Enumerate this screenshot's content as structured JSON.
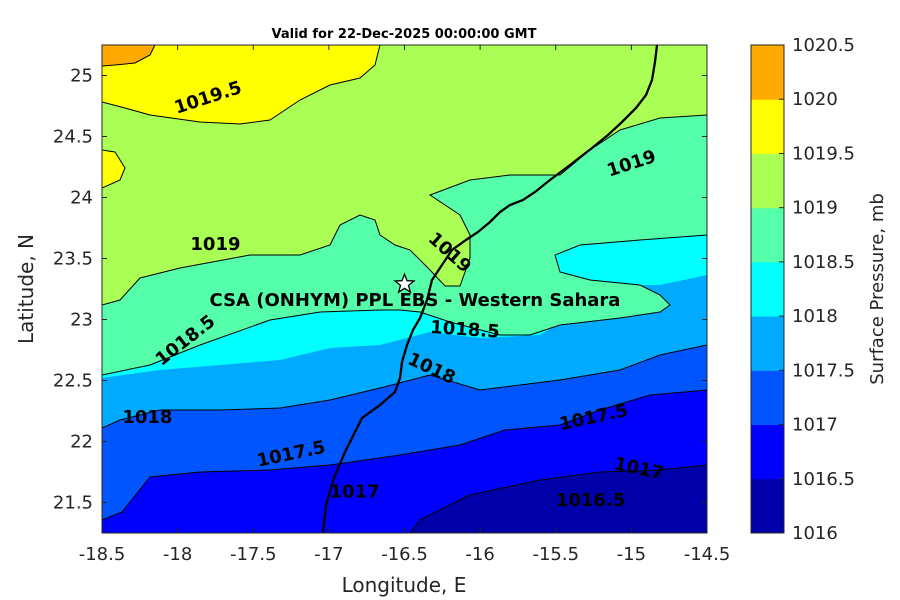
{
  "title": "Valid for 22-Dec-2025 00:00:00 GMT",
  "x_axis": {
    "label": "Longitude, E",
    "range": [
      -18.5,
      -14.5
    ],
    "ticks": [
      "-18.5",
      "-18",
      "-17.5",
      "-17",
      "-16.5",
      "-16",
      "-15.5",
      "-15",
      "-14.5"
    ]
  },
  "y_axis": {
    "label": "Latitude, N",
    "range": [
      21.25,
      25.25
    ],
    "ticks": [
      "21.5",
      "22",
      "22.5",
      "23",
      "23.5",
      "24",
      "24.5",
      "25"
    ]
  },
  "station": {
    "name": "CSA (ONHYM) PPL EBS - Western Sahara",
    "lon": -16.5,
    "lat": 23.29,
    "marker": "star-icon"
  },
  "colorbar": {
    "label": "Surface Pressure, mb",
    "levels": [
      "1016",
      "1016.5",
      "1017",
      "1017.5",
      "1018",
      "1018.5",
      "1019",
      "1019.5",
      "1020",
      "1020.5"
    ],
    "colors": [
      "#0000aa",
      "#0000ff",
      "#0055ff",
      "#00aaff",
      "#00ffff",
      "#55ffaa",
      "#aaff55",
      "#ffff00",
      "#ffaa00",
      "#ff5500"
    ]
  },
  "contour_labels": [
    {
      "text": "1019.5",
      "lon": -17.8,
      "lat": 24.82,
      "angle": -18
    },
    {
      "text": "1019",
      "lon": -17.75,
      "lat": 23.62,
      "angle": 0
    },
    {
      "text": "1019",
      "lon": -15.0,
      "lat": 24.28,
      "angle": -18
    },
    {
      "text": "1019",
      "lon": -16.2,
      "lat": 23.55,
      "angle": 42
    },
    {
      "text": "1018.5",
      "lon": -17.95,
      "lat": 22.83,
      "angle": -38
    },
    {
      "text": "1018.5",
      "lon": -16.1,
      "lat": 22.92,
      "angle": 4
    },
    {
      "text": "1018",
      "lon": -18.2,
      "lat": 22.2,
      "angle": 0
    },
    {
      "text": "1018",
      "lon": -16.32,
      "lat": 22.6,
      "angle": 25
    },
    {
      "text": "1017.5",
      "lon": -17.25,
      "lat": 21.9,
      "angle": -12
    },
    {
      "text": "1017.5",
      "lon": -15.25,
      "lat": 22.2,
      "angle": -12
    },
    {
      "text": "1017",
      "lon": -16.83,
      "lat": 21.59,
      "angle": 0
    },
    {
      "text": "1017",
      "lon": -14.95,
      "lat": 21.78,
      "angle": 12
    },
    {
      "text": "1016.5",
      "lon": -15.27,
      "lat": 21.52,
      "angle": 0
    }
  ]
}
